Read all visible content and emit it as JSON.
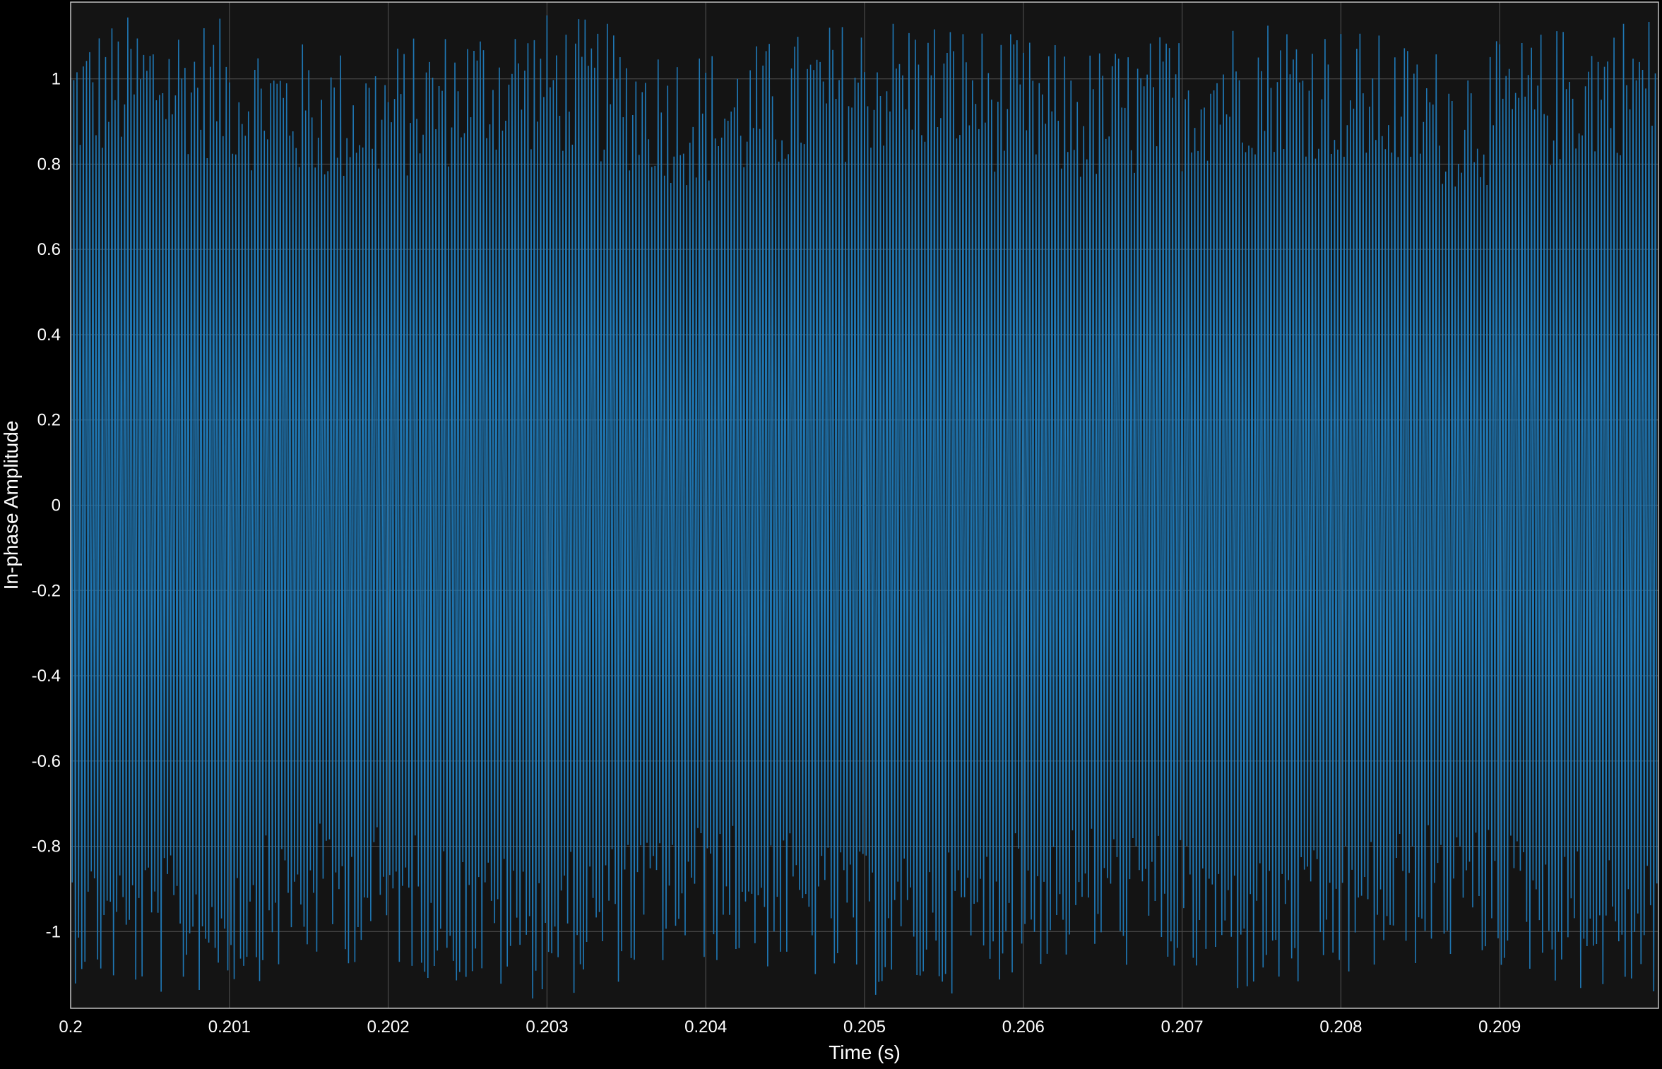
{
  "chart_data": {
    "type": "line",
    "title": "",
    "xlabel": "Time (s)",
    "ylabel": "In-phase Amplitude",
    "xlim": [
      0.2,
      0.21
    ],
    "ylim": [
      -1.18,
      1.18
    ],
    "x_ticks": [
      0.2,
      0.201,
      0.202,
      0.203,
      0.204,
      0.205,
      0.206,
      0.207,
      0.208,
      0.209
    ],
    "x_tick_labels": [
      "0.2",
      "0.201",
      "0.202",
      "0.203",
      "0.204",
      "0.205",
      "0.206",
      "0.207",
      "0.208",
      "0.209"
    ],
    "y_ticks": [
      1,
      0.8,
      0.6,
      0.4,
      0.2,
      0,
      -0.2,
      -0.4,
      -0.6,
      -0.8,
      -1
    ],
    "y_tick_labels": [
      "1",
      "0.8",
      "0.6",
      "0.4",
      "0.2",
      "0",
      "-0.2",
      "-0.4",
      "-0.6",
      "-0.8",
      "-1"
    ],
    "grid": true,
    "colors": {
      "background": "#000000",
      "axes_background": "#141414",
      "grid": "#4a4a4a",
      "axes_border": "#bfbfbf",
      "line": "#1f77b4",
      "text": "#ffffff"
    },
    "series": [
      {
        "sample_interval_s": 1e-05,
        "x_start": 0.2,
        "x_end": 0.21,
        "y_approx_peak_range": [
          -1.18,
          1.16
        ],
        "description_note_removed": true,
        "y": []
      }
    ]
  }
}
